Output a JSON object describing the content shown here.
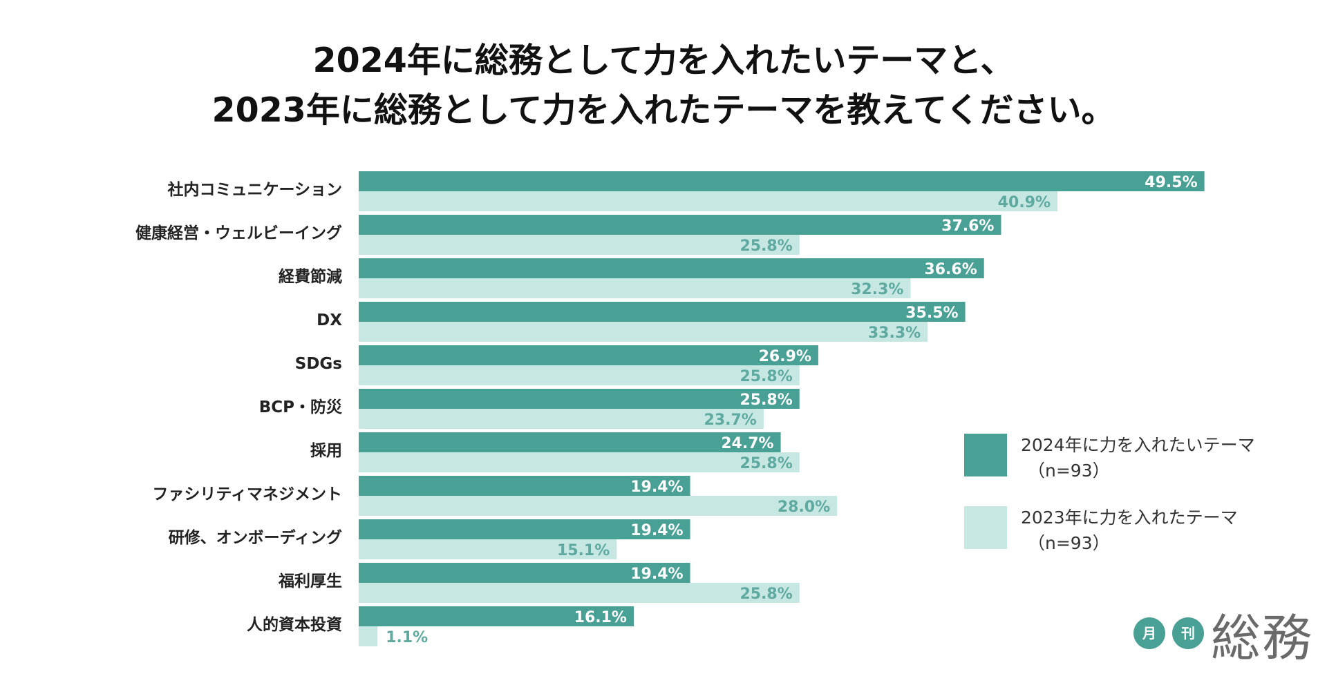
{
  "title_line1": "2024年に総務として力を入れたいテーマと、",
  "title_line2": "2023年に総務として力を入れたテーマを教えてください。",
  "colors": {
    "series_2024": "#49a095",
    "series_2023": "#c6e7e2",
    "label_on_light": "#5eaaa0",
    "text": "#222222"
  },
  "legend": [
    {
      "label": "2024年に力を入れたいテーマ",
      "sub": "（n=93）"
    },
    {
      "label": "2023年に力を入れたテーマ",
      "sub": "（n=93）"
    }
  ],
  "logo": {
    "badge1": "月",
    "badge2": "刊",
    "main": "総務"
  },
  "chart_data": {
    "type": "bar",
    "orientation": "horizontal",
    "title": "2024年に総務として力を入れたいテーマと、2023年に総務として力を入れたテーマを教えてください。",
    "categories": [
      "社内コミュニケーション",
      "健康経営・ウェルビーイング",
      "経費節減",
      "DX",
      "SDGs",
      "BCP・防災",
      "採用",
      "ファシリティマネジメント",
      "研修、オンボーディング",
      "福利厚生",
      "人的資本投資"
    ],
    "series": [
      {
        "name": "2024年に力を入れたいテーマ（n=93）",
        "values": [
          49.5,
          37.6,
          36.6,
          35.5,
          26.9,
          25.8,
          24.7,
          19.4,
          19.4,
          19.4,
          16.1
        ]
      },
      {
        "name": "2023年に力を入れたテーマ（n=93）",
        "values": [
          40.9,
          25.8,
          32.3,
          33.3,
          25.8,
          23.7,
          25.8,
          28.0,
          15.1,
          25.8,
          1.1
        ]
      }
    ],
    "value_suffix": "%",
    "xlim": [
      0,
      50
    ],
    "grid": false,
    "legend_position": "right"
  }
}
